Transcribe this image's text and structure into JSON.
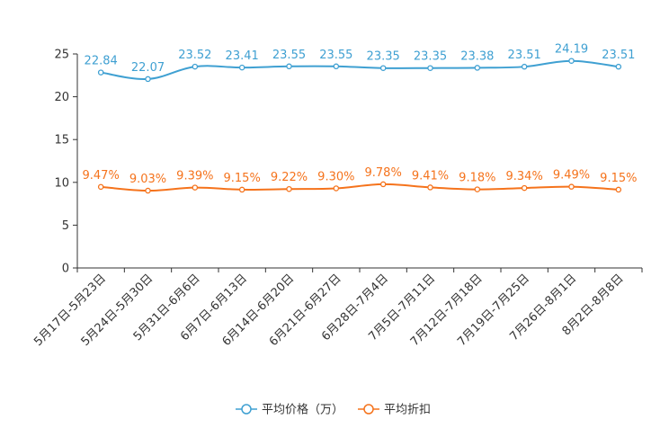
{
  "chart_data": {
    "type": "line",
    "categories": [
      "5月17日-5月23日",
      "5月24日-5月30日",
      "5月31日-6月6日",
      "6月7日-6月13日",
      "6月14日-6月20日",
      "6月21日-6月27日",
      "6月28日-7月4日",
      "7月5日-7月11日",
      "7月12日-7月18日",
      "7月19日-7月25日",
      "7月26日-8月1日",
      "8月2日-8月8日"
    ],
    "series": [
      {
        "name": "平均价格（万）",
        "color": "#3fa0d2",
        "values": [
          22.84,
          22.07,
          23.52,
          23.41,
          23.55,
          23.55,
          23.35,
          23.35,
          23.38,
          23.51,
          24.19,
          23.51
        ],
        "labels": [
          "22.84",
          "22.07",
          "23.52",
          "23.41",
          "23.55",
          "23.55",
          "23.35",
          "23.35",
          "23.38",
          "23.51",
          "24.19",
          "23.51"
        ]
      },
      {
        "name": "平均折扣",
        "color": "#f5731c",
        "values": [
          9.47,
          9.03,
          9.39,
          9.15,
          9.22,
          9.3,
          9.78,
          9.41,
          9.18,
          9.34,
          9.49,
          9.15
        ],
        "labels": [
          "9.47%",
          "9.03%",
          "9.39%",
          "9.15%",
          "9.22%",
          "9.30%",
          "9.78%",
          "9.41%",
          "9.18%",
          "9.34%",
          "9.49%",
          "9.15%"
        ]
      }
    ],
    "yticks": [
      0,
      5,
      10,
      15,
      20,
      25
    ],
    "ylim": [
      0,
      25
    ],
    "grid": false,
    "legend": "bottom-center"
  }
}
